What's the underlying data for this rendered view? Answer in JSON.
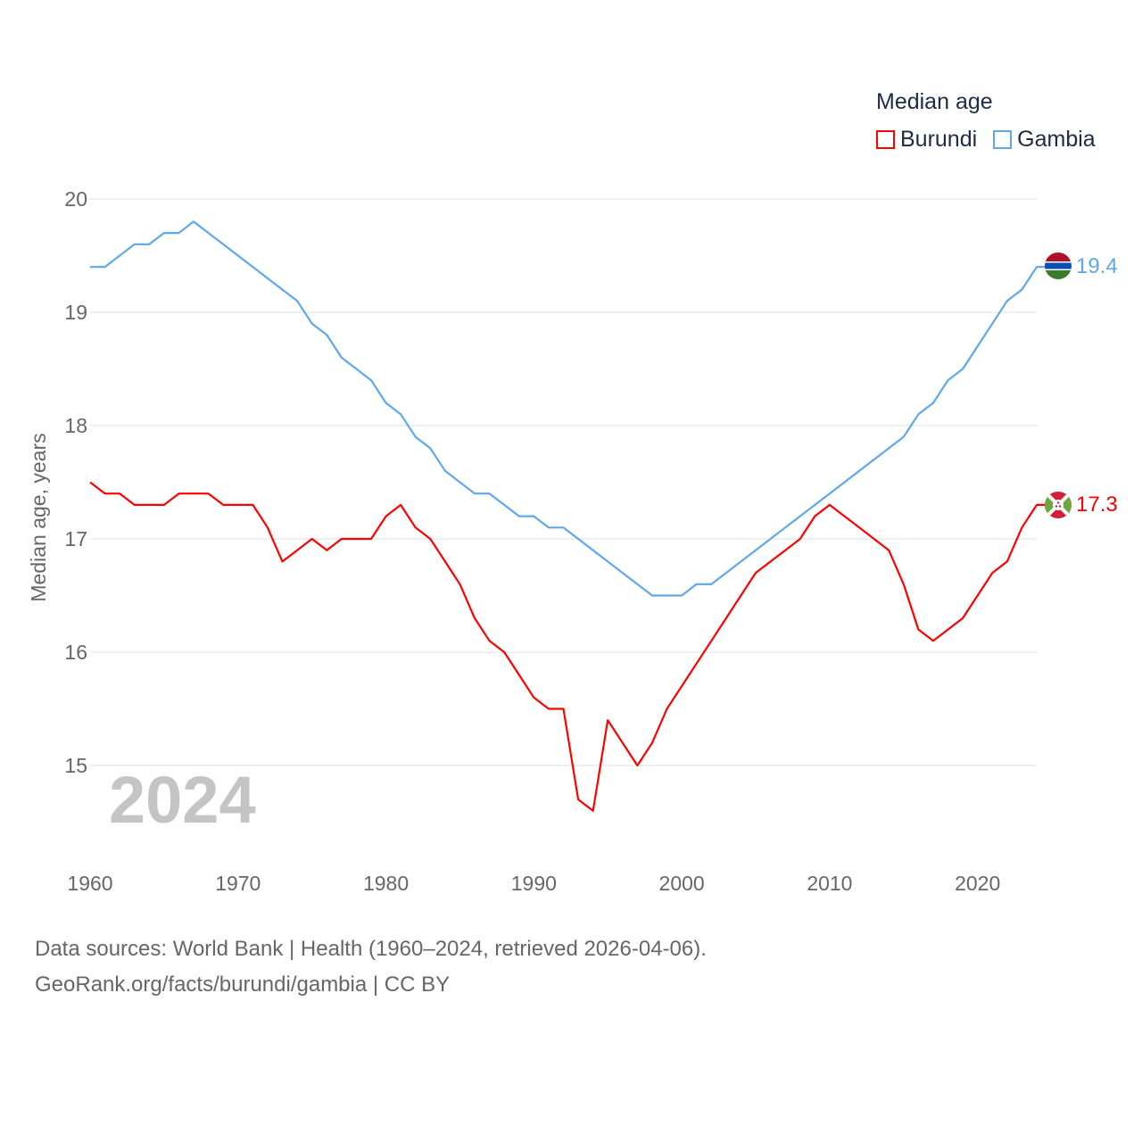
{
  "chart_data": {
    "type": "line",
    "title": "Median age",
    "xlabel": "",
    "ylabel": "Median age, years",
    "xlim": [
      1960,
      2024
    ],
    "ylim": [
      14.4,
      20.2
    ],
    "x_ticks": [
      "1960",
      "1970",
      "1980",
      "1990",
      "2000",
      "2010",
      "2020"
    ],
    "y_ticks": [
      "15",
      "16",
      "17",
      "18",
      "19",
      "20"
    ],
    "grid": true,
    "legend_placement": "top-right",
    "year_watermark": "2024",
    "x": [
      1960,
      1961,
      1962,
      1963,
      1964,
      1965,
      1966,
      1967,
      1968,
      1969,
      1970,
      1971,
      1972,
      1973,
      1974,
      1975,
      1976,
      1977,
      1978,
      1979,
      1980,
      1981,
      1982,
      1983,
      1984,
      1985,
      1986,
      1987,
      1988,
      1989,
      1990,
      1991,
      1992,
      1993,
      1994,
      1995,
      1996,
      1997,
      1998,
      1999,
      2000,
      2001,
      2002,
      2003,
      2004,
      2005,
      2006,
      2007,
      2008,
      2009,
      2010,
      2011,
      2012,
      2013,
      2014,
      2015,
      2016,
      2017,
      2018,
      2019,
      2020,
      2021,
      2022,
      2023,
      2024
    ],
    "series": [
      {
        "name": "Burundi",
        "color": "#ff0000",
        "end_label": "17.3",
        "values": [
          17.5,
          17.4,
          17.4,
          17.3,
          17.3,
          17.3,
          17.4,
          17.4,
          17.4,
          17.3,
          17.3,
          17.3,
          17.1,
          16.8,
          16.9,
          17.0,
          16.9,
          17.0,
          17.0,
          17.0,
          17.2,
          17.3,
          17.1,
          17.0,
          16.8,
          16.6,
          16.3,
          16.1,
          16.0,
          15.8,
          15.6,
          15.5,
          15.5,
          14.7,
          14.6,
          15.4,
          15.2,
          15.0,
          15.2,
          15.5,
          15.7,
          15.9,
          16.1,
          16.3,
          16.5,
          16.7,
          16.8,
          16.9,
          17.0,
          17.2,
          17.3,
          17.2,
          17.1,
          17.0,
          16.9,
          16.6,
          16.2,
          16.1,
          16.2,
          16.3,
          16.5,
          16.7,
          16.8,
          17.1,
          17.3
        ]
      },
      {
        "name": "Gambia",
        "color": "#5ea8ea",
        "end_label": "19.4",
        "values": [
          19.4,
          19.4,
          19.5,
          19.6,
          19.6,
          19.7,
          19.7,
          19.8,
          19.7,
          19.6,
          19.5,
          19.4,
          19.3,
          19.2,
          19.1,
          18.9,
          18.8,
          18.6,
          18.5,
          18.4,
          18.2,
          18.1,
          17.9,
          17.8,
          17.6,
          17.5,
          17.4,
          17.4,
          17.3,
          17.2,
          17.2,
          17.1,
          17.1,
          17.0,
          16.9,
          16.8,
          16.7,
          16.6,
          16.5,
          16.5,
          16.5,
          16.6,
          16.6,
          16.7,
          16.8,
          16.9,
          17.0,
          17.1,
          17.2,
          17.3,
          17.4,
          17.5,
          17.6,
          17.7,
          17.8,
          17.9,
          18.1,
          18.2,
          18.4,
          18.5,
          18.7,
          18.9,
          19.1,
          19.2,
          19.4
        ]
      }
    ]
  },
  "footer": {
    "source_line": "Data sources: World Bank | Health (1960–2024, retrieved 2026-04-06).",
    "credit_line": "GeoRank.org/facts/burundi/gambia | CC BY"
  }
}
